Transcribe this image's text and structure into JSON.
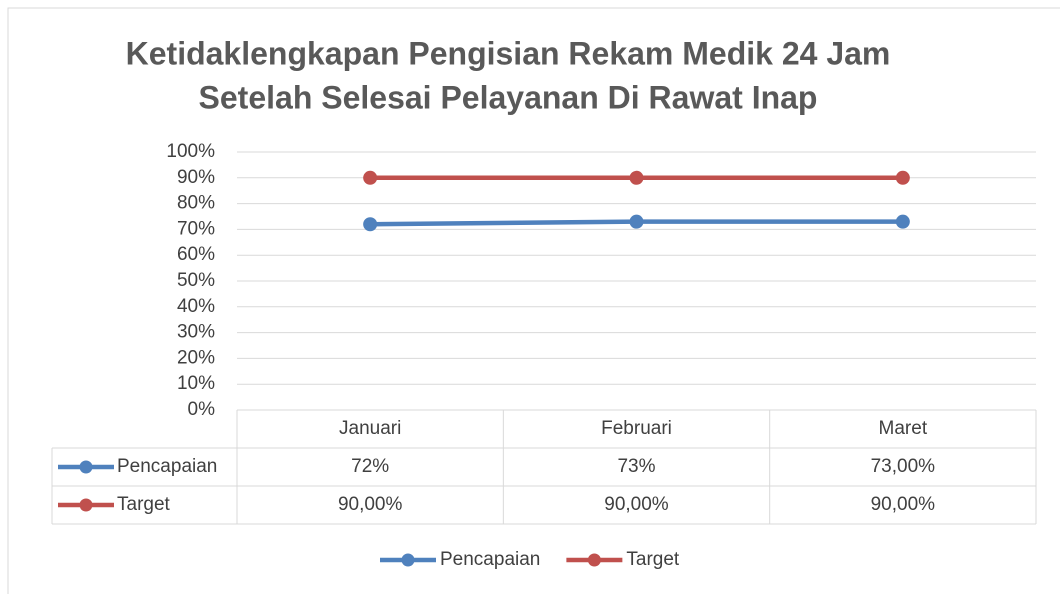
{
  "chart_data": {
    "type": "line",
    "title": [
      "Ketidaklengkapan Pengisian Rekam Medik 24 Jam",
      "Setelah Selesai Pelayanan Di Rawat Inap"
    ],
    "categories": [
      "Januari",
      "Februari",
      "Maret"
    ],
    "series": [
      {
        "name": "Pencapaian",
        "color": "#4f81bd",
        "values": [
          72,
          73,
          73
        ],
        "value_labels": [
          "72%",
          "73%",
          "73,00%"
        ]
      },
      {
        "name": "Target",
        "color": "#c0504d",
        "values": [
          90,
          90,
          90
        ],
        "value_labels": [
          "90,00%",
          "90,00%",
          "90,00%"
        ]
      }
    ],
    "ylim": [
      0,
      100
    ],
    "yticks": [
      {
        "value": 0,
        "label": "0%"
      },
      {
        "value": 10,
        "label": "10%"
      },
      {
        "value": 20,
        "label": "20%"
      },
      {
        "value": 30,
        "label": "30%"
      },
      {
        "value": 40,
        "label": "40%"
      },
      {
        "value": 50,
        "label": "50%"
      },
      {
        "value": 60,
        "label": "60%"
      },
      {
        "value": 70,
        "label": "70%"
      },
      {
        "value": 80,
        "label": "80%"
      },
      {
        "value": 90,
        "label": "90%"
      },
      {
        "value": 100,
        "label": "100%"
      }
    ],
    "grid": true,
    "legend": "bottom"
  }
}
